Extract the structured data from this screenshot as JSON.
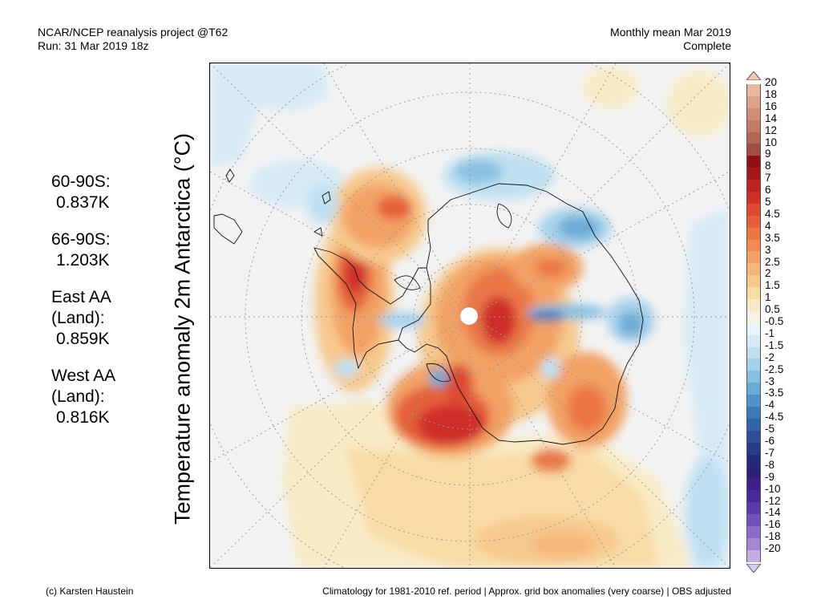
{
  "header": {
    "title_line1": "NCAR/NCEP reanalysis project @T62",
    "title_line2": "Run: 31 Mar 2019 18z",
    "right_line1": "Monthly mean Mar 2019",
    "right_line2": "Complete"
  },
  "ylabel": "Temperature anomaly 2m Antarctica (°C)",
  "stats": [
    {
      "label_lines": [
        "60-90S:"
      ],
      "value": "0.837K"
    },
    {
      "label_lines": [
        "66-90S:"
      ],
      "value": "1.203K"
    },
    {
      "label_lines": [
        "East AA",
        "(Land):"
      ],
      "value": "0.859K"
    },
    {
      "label_lines": [
        "West AA",
        "(Land):"
      ],
      "value": "0.816K"
    }
  ],
  "colorbar": {
    "labels": [
      "20",
      "18",
      "16",
      "14",
      "12",
      "10",
      "9",
      "8",
      "7",
      "6",
      "5",
      "4.5",
      "4",
      "3.5",
      "3",
      "2.5",
      "2",
      "1.5",
      "1",
      "0.5",
      "-0.5",
      "-1",
      "-1.5",
      "-2",
      "-2.5",
      "-3",
      "-3.5",
      "-4",
      "-4.5",
      "-5",
      "-6",
      "-7",
      "-8",
      "-9",
      "-10",
      "-12",
      "-14",
      "-16",
      "-18",
      "-20"
    ],
    "colors": [
      "#e8b9a1",
      "#dca388",
      "#d08f74",
      "#c27c63",
      "#b26752",
      "#a04e41",
      "#8e1010",
      "#a51818",
      "#bc2222",
      "#cf2f29",
      "#dd4a32",
      "#e5603a",
      "#ec7744",
      "#f08c53",
      "#f3a265",
      "#f5b679",
      "#f7c98e",
      "#f8dba5",
      "#f9ebc5",
      "#f5f2e6",
      "#eaf3fa",
      "#d7ebf7",
      "#c0e0f2",
      "#a6d2ec",
      "#89c0e2",
      "#6caad6",
      "#5292c8",
      "#3e79b8",
      "#3265a8",
      "#2a4f97",
      "#253c86",
      "#252a78",
      "#2e1f78",
      "#3c2088",
      "#4a2a98",
      "#5c3ba8",
      "#7251b9",
      "#8b6ac8",
      "#a587d6",
      "#c3aee4"
    ],
    "arrow_top_color": "#f2c8b4",
    "arrow_bottom_color": "#d6cbef"
  },
  "footer": {
    "left": "(c) Karsten Haustein",
    "right": "Climatology for 1981-2010 ref. period | Approx. grid box anomalies (very coarse) | OBS adjusted"
  }
}
